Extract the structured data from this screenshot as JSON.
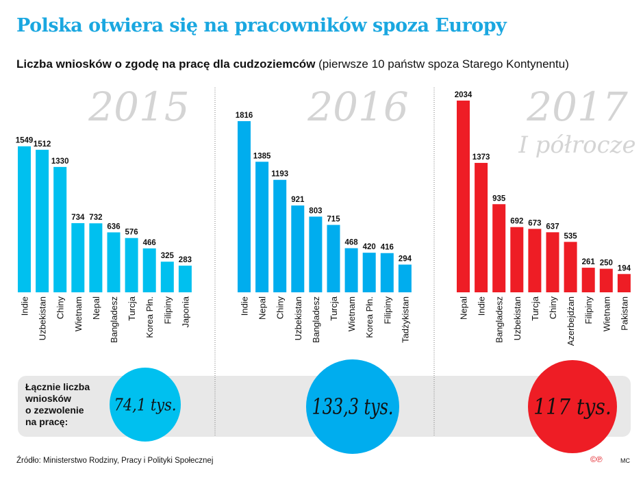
{
  "title": "Polska otwiera się na  pracowników spoza Europy",
  "subtitle_bold": "Liczba wniosków o zgodę na pracę dla  cudzoziemców",
  "subtitle_rest": " (pierwsze 10 państw spoza Starego Kontynentu)",
  "source": "Źródło: Ministerstwo Rodziny, Pracy i Polityki Społecznej",
  "copyright_mark": "©℗",
  "author": "MC",
  "totals_label": [
    "Łącznie liczba",
    "wniosków",
    "o zezwolenie",
    "na pracę:"
  ],
  "colors": {
    "2015": "#00c0ef",
    "2016": "#00adee",
    "2017": "#ee1d25",
    "title": "#1aa7e0",
    "band": "#e8e8e8"
  },
  "chart_data": [
    {
      "type": "bar",
      "title": "2015",
      "subtitle": "",
      "total": "74,1 tys.",
      "categories": [
        "Indie",
        "Uzbekistan",
        "Chiny",
        "Wietnam",
        "Nepal",
        "Bangladesz",
        "Turcja",
        "Korea Płn.",
        "Filipiny",
        "Japonia"
      ],
      "values": [
        1549,
        1512,
        1330,
        734,
        732,
        636,
        576,
        466,
        325,
        283
      ]
    },
    {
      "type": "bar",
      "title": "2016",
      "subtitle": "",
      "total": "133,3 tys.",
      "categories": [
        "Indie",
        "Nepal",
        "Chiny",
        "Uzbekistan",
        "Bangladesz",
        "Turcja",
        "Wietnam",
        "Korea Płn.",
        "Filipiny",
        "Tadżykistan"
      ],
      "values": [
        1816,
        1385,
        1193,
        921,
        803,
        715,
        468,
        420,
        416,
        294
      ]
    },
    {
      "type": "bar",
      "title": "2017",
      "subtitle": "I półrocze",
      "total": "117 tys.",
      "categories": [
        "Nepal",
        "Indie",
        "Bangladesz",
        "Uzbekistan",
        "Turcja",
        "Chiny",
        "Azerbejdżan",
        "Filipiny",
        "Wietnam",
        "Pakistan"
      ],
      "values": [
        2034,
        1373,
        935,
        692,
        673,
        637,
        535,
        261,
        250,
        194
      ]
    }
  ]
}
